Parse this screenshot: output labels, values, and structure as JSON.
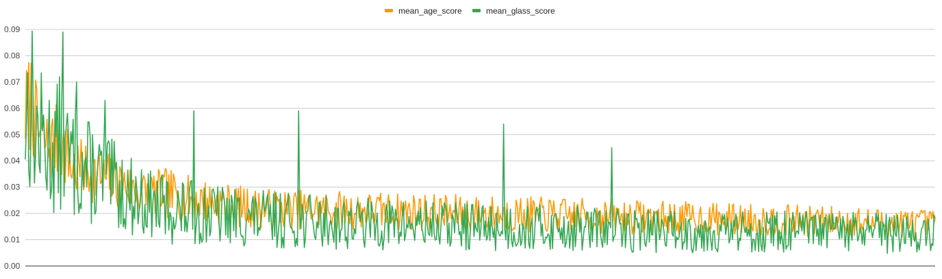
{
  "chart_data": {
    "type": "line",
    "title": "",
    "xlabel": "",
    "ylabel": "",
    "ylim": [
      0,
      0.09
    ],
    "yticks": [
      "0.00",
      "0.01",
      "0.02",
      "0.03",
      "0.04",
      "0.05",
      "0.06",
      "0.07",
      "0.08",
      "0.09"
    ],
    "grid": true,
    "legend": "top-center",
    "n_points": 800,
    "series": [
      {
        "name": "mean_age_score",
        "color": "#ff9900",
        "key_points": [
          [
            0,
            0.058
          ],
          [
            5,
            0.063
          ],
          [
            10,
            0.052
          ],
          [
            20,
            0.045
          ],
          [
            30,
            0.048
          ],
          [
            40,
            0.038
          ],
          [
            60,
            0.035
          ],
          [
            80,
            0.032
          ],
          [
            100,
            0.028
          ],
          [
            120,
            0.028
          ],
          [
            150,
            0.025
          ],
          [
            200,
            0.022
          ],
          [
            300,
            0.021
          ],
          [
            400,
            0.02
          ],
          [
            500,
            0.019
          ],
          [
            600,
            0.018
          ],
          [
            700,
            0.017
          ],
          [
            799,
            0.016
          ]
        ]
      },
      {
        "name": "mean_glass_score",
        "color": "#34a853",
        "key_points": [
          [
            0,
            0.057
          ],
          [
            5,
            0.062
          ],
          [
            10,
            0.05
          ],
          [
            20,
            0.045
          ],
          [
            30,
            0.045
          ],
          [
            40,
            0.04
          ],
          [
            60,
            0.035
          ],
          [
            80,
            0.03
          ],
          [
            100,
            0.025
          ],
          [
            120,
            0.022
          ],
          [
            150,
            0.02
          ],
          [
            200,
            0.018
          ],
          [
            300,
            0.016
          ],
          [
            400,
            0.015
          ],
          [
            500,
            0.014
          ],
          [
            600,
            0.013
          ],
          [
            700,
            0.013
          ],
          [
            799,
            0.012
          ]
        ],
        "peaks": [
          [
            30,
            0.072
          ],
          [
            33,
            0.089
          ],
          [
            45,
            0.07
          ],
          [
            70,
            0.063
          ],
          [
            148,
            0.059
          ],
          [
            240,
            0.059
          ],
          [
            420,
            0.054
          ],
          [
            515,
            0.045
          ]
        ]
      }
    ]
  }
}
